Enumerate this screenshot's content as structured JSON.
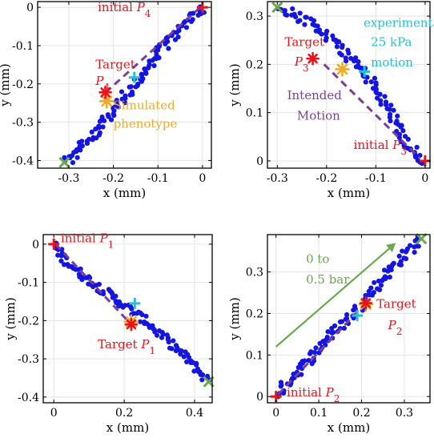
{
  "chart_data": [
    {
      "type": "scatter",
      "xlabel": "x (mm)",
      "ylabel": "y (mm)",
      "xlim": [
        -0.37,
        0.02
      ],
      "ylim": [
        -0.42,
        0.015
      ],
      "xticks": [
        -0.3,
        -0.2,
        -0.1,
        0
      ],
      "xticklabels": [
        "-0.3",
        "-0.2",
        "-0.1",
        "0"
      ],
      "yticks": [
        -0.4,
        -0.3,
        -0.2,
        -0.1,
        0
      ],
      "yticklabels": [
        "-0.4",
        "-0.3",
        "-0.2",
        "-0.1",
        "0"
      ],
      "grid": true,
      "trajectory": {
        "x": [
          0,
          -0.03,
          -0.06,
          -0.1,
          -0.14,
          -0.18,
          -0.22,
          -0.26,
          -0.3,
          -0.31
        ],
        "y": [
          0,
          -0.03,
          -0.07,
          -0.12,
          -0.18,
          -0.24,
          -0.3,
          -0.35,
          -0.4,
          -0.405
        ],
        "scatter_perp": 0.012,
        "count": 110
      },
      "intended_motion": {
        "x": [
          -0.005,
          -0.22
        ],
        "y": [
          0,
          -0.225
        ]
      },
      "markers": {
        "initial": {
          "x": 0,
          "y": 0
        },
        "target": {
          "x": -0.218,
          "y": -0.222
        },
        "simulated": {
          "x": -0.215,
          "y": -0.245
        },
        "experimental": {
          "x": -0.153,
          "y": -0.183
        },
        "end": {
          "x": -0.31,
          "y": -0.405
        }
      },
      "annotations": [
        {
          "parts": [
            {
              "t": "initial "
            },
            {
              "t": "P",
              "i": true
            },
            {
              "t": "4",
              "sub": true
            }
          ],
          "color": "#e8141b",
          "x": -0.235,
          "y": -0.01
        },
        {
          "parts": [
            {
              "t": "Target"
            }
          ],
          "color": "#e8141b",
          "x": -0.24,
          "y": -0.16
        },
        {
          "parts": [
            {
              "t": "P",
              "i": true
            },
            {
              "t": "4",
              "sub": true
            }
          ],
          "color": "#e8141b",
          "x": -0.24,
          "y": -0.203
        },
        {
          "parts": [
            {
              "t": "Simulated"
            }
          ],
          "color": "#eeab2a",
          "x": -0.2,
          "y": -0.266
        },
        {
          "parts": [
            {
              "t": "phenotype"
            }
          ],
          "color": "#eeab2a",
          "x": -0.2,
          "y": -0.314
        }
      ]
    },
    {
      "type": "scatter",
      "xlabel": "x (mm)",
      "ylabel": "y (mm)",
      "xlim": [
        -0.32,
        0.01
      ],
      "ylim": [
        -0.015,
        0.33
      ],
      "xticks": [
        -0.3,
        -0.2,
        -0.1,
        0
      ],
      "xticklabels": [
        "-0.3",
        "-0.2",
        "-0.1",
        "0"
      ],
      "yticks": [
        0,
        0.1,
        0.2,
        0.3
      ],
      "yticklabels": [
        "0",
        "0.1",
        "0.2",
        "0.3"
      ],
      "grid": true,
      "trajectory": {
        "x": [
          0,
          -0.04,
          -0.08,
          -0.12,
          -0.16,
          -0.2,
          -0.24,
          -0.28,
          -0.3
        ],
        "y": [
          0,
          0.04,
          0.12,
          0.18,
          0.22,
          0.26,
          0.29,
          0.31,
          0.315
        ],
        "scatter_perp": 0.01,
        "count": 105
      },
      "intended_motion": {
        "x": [
          -0.205,
          -0.01
        ],
        "y": [
          0.2,
          0.005
        ]
      },
      "markers": {
        "initial": {
          "x": 0,
          "y": 0
        },
        "target": {
          "x": -0.228,
          "y": 0.212
        },
        "simulated": {
          "x": -0.168,
          "y": 0.19
        },
        "experimental": {
          "x": -0.123,
          "y": 0.185
        },
        "end": {
          "x": -0.3,
          "y": 0.318
        }
      },
      "annotations": [
        {
          "parts": [
            {
              "t": "experimental"
            }
          ],
          "color": "#22c3d6",
          "x": -0.125,
          "y": 0.278
        },
        {
          "parts": [
            {
              "t": "25 kPa"
            }
          ],
          "color": "#22c3d6",
          "x": -0.11,
          "y": 0.238
        },
        {
          "parts": [
            {
              "t": "motion"
            }
          ],
          "color": "#22c3d6",
          "x": -0.11,
          "y": 0.196
        },
        {
          "parts": [
            {
              "t": "Target"
            }
          ],
          "color": "#e8141b",
          "x": -0.285,
          "y": 0.238
        },
        {
          "parts": [
            {
              "t": "P",
              "i": true
            },
            {
              "t": "3",
              "sub": true
            }
          ],
          "color": "#e8141b",
          "x": -0.265,
          "y": 0.197
        },
        {
          "parts": [
            {
              "t": "Intended"
            }
          ],
          "color": "#7b3f9b",
          "x": -0.28,
          "y": 0.128
        },
        {
          "parts": [
            {
              "t": "Motion"
            }
          ],
          "color": "#7b3f9b",
          "x": -0.26,
          "y": 0.085
        },
        {
          "parts": [
            {
              "t": "initial "
            },
            {
              "t": "P",
              "i": true
            },
            {
              "t": "3",
              "sub": true
            }
          ],
          "color": "#e8141b",
          "x": -0.145,
          "y": 0.025
        }
      ]
    },
    {
      "type": "scatter",
      "xlabel": "x (mm)",
      "ylabel": "y (mm)",
      "xlim": [
        -0.03,
        0.45
      ],
      "ylim": [
        -0.415,
        0.025
      ],
      "xticks": [
        0,
        0.2,
        0.4
      ],
      "xticklabels": [
        "0",
        "0.2",
        "0.4"
      ],
      "yticks": [
        -0.4,
        -0.3,
        -0.2,
        -0.1,
        0
      ],
      "yticklabels": [
        "-0.4",
        "-0.3",
        "-0.2",
        "-0.1",
        "0"
      ],
      "grid": true,
      "trajectory": {
        "x": [
          0,
          0.03,
          0.08,
          0.14,
          0.2,
          0.26,
          0.32,
          0.38,
          0.42,
          0.44
        ],
        "y": [
          0,
          -0.04,
          -0.08,
          -0.12,
          -0.16,
          -0.2,
          -0.25,
          -0.3,
          -0.34,
          -0.36
        ],
        "scatter_perp": 0.011,
        "count": 110
      },
      "intended_motion": {
        "x": [
          0.005,
          0.22
        ],
        "y": [
          0,
          -0.21
        ]
      },
      "markers": {
        "initial": {
          "x": 0,
          "y": 0
        },
        "target": {
          "x": 0.22,
          "y": -0.21
        },
        "simulated": {
          "x": 0.22,
          "y": -0.203
        },
        "experimental": {
          "x": 0.23,
          "y": -0.155
        },
        "end": {
          "x": 0.44,
          "y": -0.36
        }
      },
      "annotations": [
        {
          "parts": [
            {
              "t": "initial "
            },
            {
              "t": "P",
              "i": true
            },
            {
              "t": "1",
              "sub": true
            }
          ],
          "color": "#e8141b",
          "x": 0.02,
          "y": 0.005
        },
        {
          "parts": [
            {
              "t": "Target "
            },
            {
              "t": "P",
              "i": true
            },
            {
              "t": "1",
              "sub": true
            }
          ],
          "color": "#e8141b",
          "x": 0.125,
          "y": -0.272
        }
      ]
    },
    {
      "type": "scatter",
      "xlabel": "x (mm)",
      "ylabel": "y (mm)",
      "xlim": [
        -0.02,
        0.36
      ],
      "ylim": [
        -0.015,
        0.39
      ],
      "xticks": [
        0,
        0.1,
        0.2,
        0.3
      ],
      "xticklabels": [
        "0",
        "0.1",
        "0.2",
        "0.3"
      ],
      "yticks": [
        0,
        0.1,
        0.2,
        0.3
      ],
      "yticklabels": [
        "0",
        "0.1",
        "0.2",
        "0.3"
      ],
      "grid": true,
      "trajectory": {
        "x": [
          0,
          0.03,
          0.07,
          0.11,
          0.15,
          0.19,
          0.23,
          0.27,
          0.31,
          0.34
        ],
        "y": [
          0,
          0.04,
          0.08,
          0.13,
          0.17,
          0.21,
          0.26,
          0.31,
          0.35,
          0.38
        ],
        "scatter_perp": 0.012,
        "count": 110
      },
      "intended_motion": {
        "x": [
          0.005,
          0.205
        ],
        "y": [
          0.005,
          0.22
        ]
      },
      "markers": {
        "initial": {
          "x": 0,
          "y": 0
        },
        "target": {
          "x": 0.21,
          "y": 0.225
        },
        "simulated": {
          "x": 0.21,
          "y": 0.222
        },
        "experimental": {
          "x": 0.19,
          "y": 0.195
        },
        "end": {
          "x": 0.34,
          "y": 0.38
        }
      },
      "arrow": {
        "x": [
          0.0,
          0.28
        ],
        "y": [
          0.12,
          0.37
        ],
        "color": "#6aa84f"
      },
      "annotations": [
        {
          "parts": [
            {
              "t": "0 to"
            }
          ],
          "color": "#6aa84f",
          "x": 0.07,
          "y": 0.322
        },
        {
          "parts": [
            {
              "t": "0.5 bar"
            }
          ],
          "color": "#6aa84f",
          "x": 0.07,
          "y": 0.272
        },
        {
          "parts": [
            {
              "t": "Target"
            }
          ],
          "color": "#e8141b",
          "x": 0.235,
          "y": 0.214
        },
        {
          "parts": [
            {
              "t": "P",
              "i": true
            },
            {
              "t": "2",
              "sub": true
            }
          ],
          "color": "#e8141b",
          "x": 0.262,
          "y": 0.162
        },
        {
          "parts": [
            {
              "t": "initial "
            },
            {
              "t": "P",
              "i": true
            },
            {
              "t": "2",
              "sub": true
            }
          ],
          "color": "#e8141b",
          "x": 0.025,
          "y": 0.0
        }
      ]
    }
  ],
  "colors": {
    "points": "#1515e0",
    "initial": "#e8141b",
    "target": "#e8141b",
    "simulated": "#eeab2a",
    "experimental": "#22c3d6",
    "end": "#6aa84f",
    "intended": "#7b3f9b"
  }
}
